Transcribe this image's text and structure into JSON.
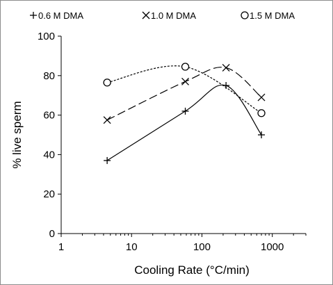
{
  "chart_data": {
    "type": "line",
    "xlabel": "Cooling Rate (°C/min)",
    "ylabel": "% live sperm",
    "x_scale": "log",
    "xlim": [
      1,
      3000
    ],
    "ylim": [
      0,
      100
    ],
    "x_ticks": [
      "1",
      "10",
      "100",
      "1000"
    ],
    "y_ticks": [
      "0",
      "20",
      "40",
      "60",
      "80",
      "100"
    ],
    "grid": false,
    "legend_position": "top",
    "series": [
      {
        "name": "0.6 M DMA",
        "marker": "plus",
        "line_style": "solid",
        "x": [
          4.5,
          58,
          220,
          700
        ],
        "y": [
          37,
          62,
          75,
          50
        ]
      },
      {
        "name": "1.0 M DMA",
        "marker": "cross",
        "line_style": "long-dash",
        "x": [
          4.5,
          58,
          220,
          700
        ],
        "y": [
          57.5,
          77,
          84,
          69
        ]
      },
      {
        "name": "1.5 M DMA",
        "marker": "circle",
        "line_style": "dotted",
        "x": [
          4.5,
          58,
          700
        ],
        "y": [
          76.5,
          84.5,
          61
        ]
      }
    ]
  }
}
